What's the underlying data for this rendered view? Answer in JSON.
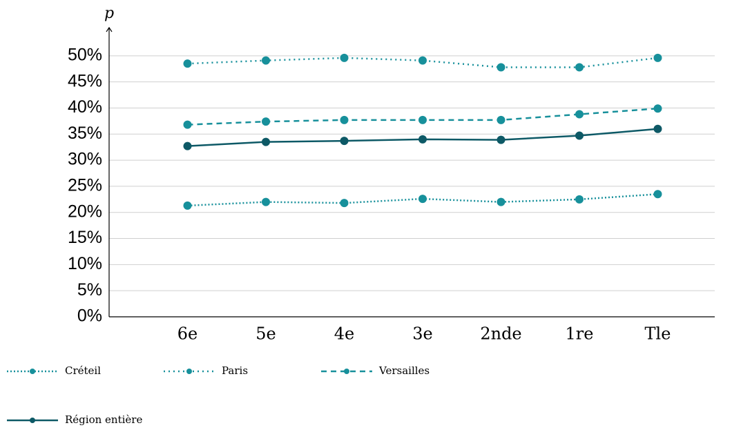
{
  "chart_data": {
    "type": "line",
    "y_label": "p",
    "categories": [
      "6e",
      "5e",
      "4e",
      "3e",
      "2nde",
      "1re",
      "Tle"
    ],
    "series": [
      {
        "name": "Créteil",
        "color": "#17909b",
        "style": "dotted",
        "values": [
          21.3,
          22.0,
          21.8,
          22.6,
          22.0,
          22.5,
          23.5
        ]
      },
      {
        "name": "Paris",
        "color": "#17909b",
        "style": "sparse-dotted",
        "values": [
          48.5,
          49.1,
          49.6,
          49.1,
          47.8,
          47.8,
          49.6
        ]
      },
      {
        "name": "Versailles",
        "color": "#17909b",
        "style": "dashed",
        "values": [
          36.8,
          37.4,
          37.7,
          37.7,
          37.7,
          38.8,
          39.9
        ]
      },
      {
        "name": "Région entière",
        "color": "#0d5966",
        "style": "solid",
        "values": [
          32.7,
          33.5,
          33.7,
          34.0,
          33.9,
          34.7,
          36.0
        ]
      }
    ],
    "ylim": [
      0,
      55.4
    ],
    "yticks": [
      {
        "value": 0,
        "label": "0%"
      },
      {
        "value": 5,
        "label": "5%"
      },
      {
        "value": 10,
        "label": "10%"
      },
      {
        "value": 15,
        "label": "15%"
      },
      {
        "value": 20,
        "label": "20%"
      },
      {
        "value": 25,
        "label": "25%"
      },
      {
        "value": 30,
        "label": "30%"
      },
      {
        "value": 35,
        "label": "35%"
      },
      {
        "value": 40,
        "label": "40%"
      },
      {
        "value": 45,
        "label": "45%"
      },
      {
        "value": 50,
        "label": "50%"
      }
    ],
    "grid": true
  }
}
